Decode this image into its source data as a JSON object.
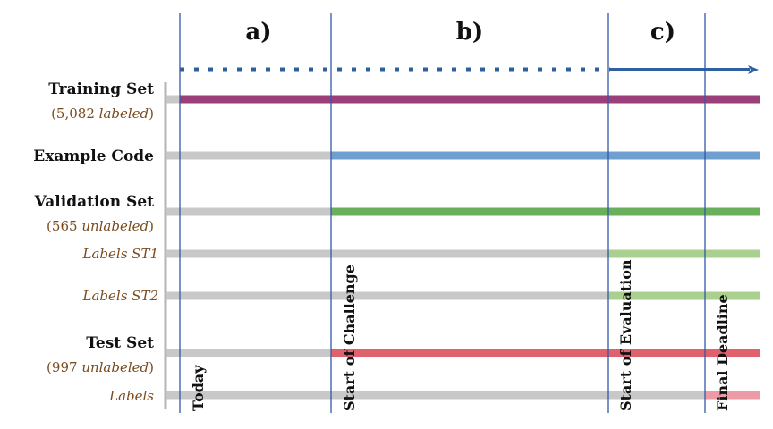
{
  "phases": [
    "a)",
    "b)",
    "c)"
  ],
  "milestones": [
    "Today",
    "Start of Challenge",
    "Start of Evaluation",
    "Final Deadline"
  ],
  "rows": [
    {
      "label": "Training Set",
      "sub_text": "(5,082 ",
      "sub_em": "labeled",
      "sub_end": ")",
      "label_style": "bold",
      "active_from": 0,
      "color": "#9b3f7a"
    },
    {
      "label": "Example Code",
      "label_style": "bold",
      "active_from": 1,
      "color": "#6f9fcf"
    },
    {
      "label": "Validation Set",
      "sub_text": "(565 ",
      "sub_em": "unlabeled",
      "sub_end": ")",
      "label_style": "bold",
      "active_from": 1,
      "color": "#6aaf5c"
    },
    {
      "label": "Labels ST1",
      "label_style": "italic",
      "active_from": 2,
      "color": "#a9d08e"
    },
    {
      "label": "Labels ST2",
      "label_style": "italic",
      "active_from": 2,
      "color": "#a9d08e"
    },
    {
      "label": "Test Set",
      "sub_text": "(997 ",
      "sub_em": "unlabeled",
      "sub_end": ")",
      "label_style": "bold",
      "active_from": 1,
      "color": "#e0606e"
    },
    {
      "label": "Labels",
      "label_style": "italic",
      "active_from": 3,
      "color": "#eb9aa6"
    }
  ],
  "colors": {
    "axis_arrow": "#2e5f9e",
    "milestone_line": "#3457a8",
    "inactive_bar": "#c8c8c8",
    "left_bracket": "#b5b5b5"
  }
}
